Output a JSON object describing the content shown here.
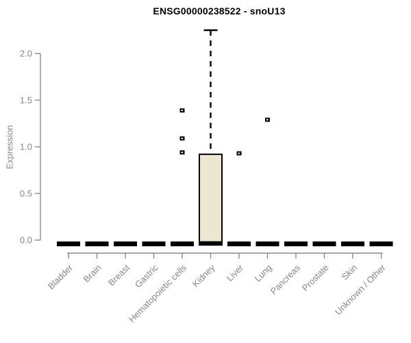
{
  "title": "ENSG00000238522 - snoU13",
  "chart_data": {
    "type": "boxplot",
    "title": "ENSG00000238522 - snoU13",
    "xlabel": "",
    "ylabel": "Expression",
    "ylim": [
      0,
      2.25
    ],
    "yticks": [
      "0.0",
      "0.5",
      "1.0",
      "1.5",
      "2.0"
    ],
    "ytick_values": [
      0.0,
      0.5,
      1.0,
      1.5,
      2.0
    ],
    "grid": "off",
    "legend": null,
    "categories": [
      "Bladder",
      "Brain",
      "Breast",
      "Gastric",
      "Hematopoietic cells",
      "Kidney",
      "Liver",
      "Lung",
      "Pancreas",
      "Prostate",
      "Skin",
      "Unknown / Other"
    ],
    "boxes": [
      {
        "category": "Bladder",
        "whisker_low": 0,
        "q1": 0,
        "median": 0,
        "q3": 0,
        "whisker_high": 0,
        "outliers": []
      },
      {
        "category": "Brain",
        "whisker_low": 0,
        "q1": 0,
        "median": 0,
        "q3": 0,
        "whisker_high": 0,
        "outliers": []
      },
      {
        "category": "Breast",
        "whisker_low": 0,
        "q1": 0,
        "median": 0,
        "q3": 0,
        "whisker_high": 0,
        "outliers": []
      },
      {
        "category": "Gastric",
        "whisker_low": 0,
        "q1": 0,
        "median": 0,
        "q3": 0,
        "whisker_high": 0,
        "outliers": []
      },
      {
        "category": "Hematopoietic cells",
        "whisker_low": 0,
        "q1": 0,
        "median": 0,
        "q3": 0,
        "whisker_high": 0,
        "outliers": [
          0.94,
          1.09,
          1.39
        ]
      },
      {
        "category": "Kidney",
        "whisker_low": 0,
        "q1": 0.01,
        "median": 0.01,
        "q3": 0.92,
        "whisker_high": 2.25,
        "outliers": []
      },
      {
        "category": "Liver",
        "whisker_low": 0,
        "q1": 0,
        "median": 0,
        "q3": 0,
        "whisker_high": 0,
        "outliers": [
          0.93
        ]
      },
      {
        "category": "Lung",
        "whisker_low": 0,
        "q1": 0,
        "median": 0,
        "q3": 0,
        "whisker_high": 0,
        "outliers": [
          1.29
        ]
      },
      {
        "category": "Pancreas",
        "whisker_low": 0,
        "q1": 0,
        "median": 0,
        "q3": 0,
        "whisker_high": 0,
        "outliers": []
      },
      {
        "category": "Prostate",
        "whisker_low": 0,
        "q1": 0,
        "median": 0,
        "q3": 0,
        "whisker_high": 0,
        "outliers": []
      },
      {
        "category": "Skin",
        "whisker_low": 0,
        "q1": 0,
        "median": 0,
        "q3": 0,
        "whisker_high": 0,
        "outliers": []
      },
      {
        "category": "Unknown / Other",
        "whisker_low": 0,
        "q1": 0,
        "median": 0,
        "q3": 0,
        "whisker_high": 0,
        "outliers": []
      }
    ],
    "colors": {
      "box_fill": "#ece7d0",
      "box_stroke": "#000000",
      "flat_box": "#000000",
      "whisker": "#000000",
      "outlier": "#000000",
      "outlier_center": "#ffffff",
      "axis": "#8a8a8a",
      "tick_label": "#868686",
      "title": "#000000",
      "background": "#ffffff"
    }
  }
}
